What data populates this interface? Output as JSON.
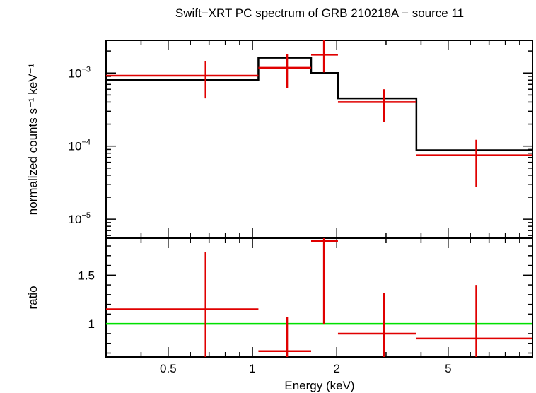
{
  "title": "Swift−XRT PC spectrum of GRB 210218A − source 11",
  "colors": {
    "data": "#e00000",
    "model": "#000000",
    "unity": "#00e000",
    "frame": "#000000"
  },
  "chart_data": [
    {
      "type": "line",
      "panel": "top",
      "ylabel": "normalized counts s⁻¹ keV⁻¹",
      "xscale": "log",
      "yscale": "log",
      "xlim": [
        0.3,
        10
      ],
      "ylim": [
        5.5e-06,
        0.0028
      ],
      "y_ticks": [
        {
          "value": 0.001,
          "base": "10",
          "exp": "−3"
        },
        {
          "value": 0.0001,
          "base": "10",
          "exp": "−4"
        },
        {
          "value": 1e-05,
          "base": "10",
          "exp": "−5"
        }
      ],
      "series": [
        {
          "kind": "data-crosses",
          "points": [
            {
              "x": 0.68,
              "xlo": 0.3,
              "xhi": 1.05,
              "y": 0.00092,
              "ylo": 0.00045,
              "yhi": 0.00145
            },
            {
              "x": 1.33,
              "xlo": 1.05,
              "xhi": 1.62,
              "y": 0.00118,
              "ylo": 0.00062,
              "yhi": 0.0018
            },
            {
              "x": 1.8,
              "xlo": 1.62,
              "xhi": 2.02,
              "y": 0.00178,
              "ylo": 0.00102,
              "yhi": 0.0028
            },
            {
              "x": 2.95,
              "xlo": 2.02,
              "xhi": 3.85,
              "y": 0.0004,
              "ylo": 0.000215,
              "yhi": 0.0006
            },
            {
              "x": 6.3,
              "xlo": 3.85,
              "xhi": 10,
              "y": 7.5e-05,
              "ylo": 2.75e-05,
              "yhi": 0.000122
            }
          ]
        },
        {
          "kind": "model-step",
          "steps": [
            {
              "xlo": 0.3,
              "xhi": 1.05,
              "y": 0.0008
            },
            {
              "xlo": 1.05,
              "xhi": 1.62,
              "y": 0.00162
            },
            {
              "xlo": 1.62,
              "xhi": 2.02,
              "y": 0.001
            },
            {
              "xlo": 2.02,
              "xhi": 3.85,
              "y": 0.00045
            },
            {
              "xlo": 3.85,
              "xhi": 10,
              "y": 8.8e-05
            }
          ]
        }
      ]
    },
    {
      "type": "line",
      "panel": "bottom",
      "xlabel": "Energy (keV)",
      "ylabel": "ratio",
      "xscale": "log",
      "xlim": [
        0.3,
        10
      ],
      "ylim": [
        0.66,
        1.88
      ],
      "x_ticks": [
        {
          "value": 0.5,
          "label": "0.5"
        },
        {
          "value": 1,
          "label": "1"
        },
        {
          "value": 2,
          "label": "2"
        },
        {
          "value": 5,
          "label": "5"
        }
      ],
      "y_ticks": [
        {
          "value": 1,
          "label": "1"
        },
        {
          "value": 1.5,
          "label": "1.5"
        }
      ],
      "unity": 1,
      "series": [
        {
          "kind": "data-crosses",
          "points": [
            {
              "x": 0.68,
              "xlo": 0.3,
              "xhi": 1.05,
              "y": 1.15,
              "ylo": 0.66,
              "yhi": 1.74
            },
            {
              "x": 1.33,
              "xlo": 1.05,
              "xhi": 1.62,
              "y": 0.72,
              "ylo": 0.66,
              "yhi": 1.07
            },
            {
              "x": 1.8,
              "xlo": 1.62,
              "xhi": 2.02,
              "y": 1.85,
              "ylo": 1.0,
              "yhi": 1.88
            },
            {
              "x": 2.95,
              "xlo": 2.02,
              "xhi": 3.85,
              "y": 0.9,
              "ylo": 0.66,
              "yhi": 1.32
            },
            {
              "x": 6.3,
              "xlo": 3.85,
              "xhi": 10,
              "y": 0.85,
              "ylo": 0.66,
              "yhi": 1.4
            }
          ]
        }
      ]
    }
  ]
}
